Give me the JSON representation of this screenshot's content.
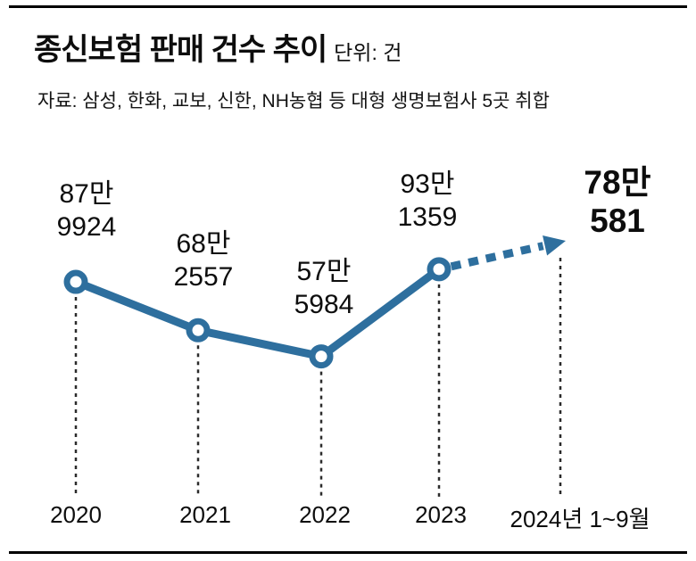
{
  "header": {
    "title": "종신보험 판매 건수 추이",
    "unit": "단위: 건",
    "source": "자료: 삼성, 한화, 교보, 신한, NH농협 등 대형 생명보험사 5곳 취합"
  },
  "colors": {
    "line": "#2e6f9e",
    "guide": "#2b2b2b",
    "text": "#0d0d0d"
  },
  "chart_data": {
    "type": "line",
    "title": "종신보험 판매 건수 추이",
    "unit_label": "단위: 건",
    "source": "자료: 삼성, 한화, 교보, 신한, NH농협 등 대형 생명보험사 5곳 취합",
    "categories": [
      "2020",
      "2021",
      "2022",
      "2023",
      "2024년 1~9월"
    ],
    "values": [
      879924,
      682557,
      575984,
      931359,
      780581
    ],
    "point_labels": [
      "87만\n9924",
      "68만\n2557",
      "57만\n5984",
      "93만\n1359",
      "78만\n581"
    ],
    "ylim": [
      560000,
      960000
    ],
    "grid": false,
    "legend": "none",
    "dashed_projection_last": true
  }
}
